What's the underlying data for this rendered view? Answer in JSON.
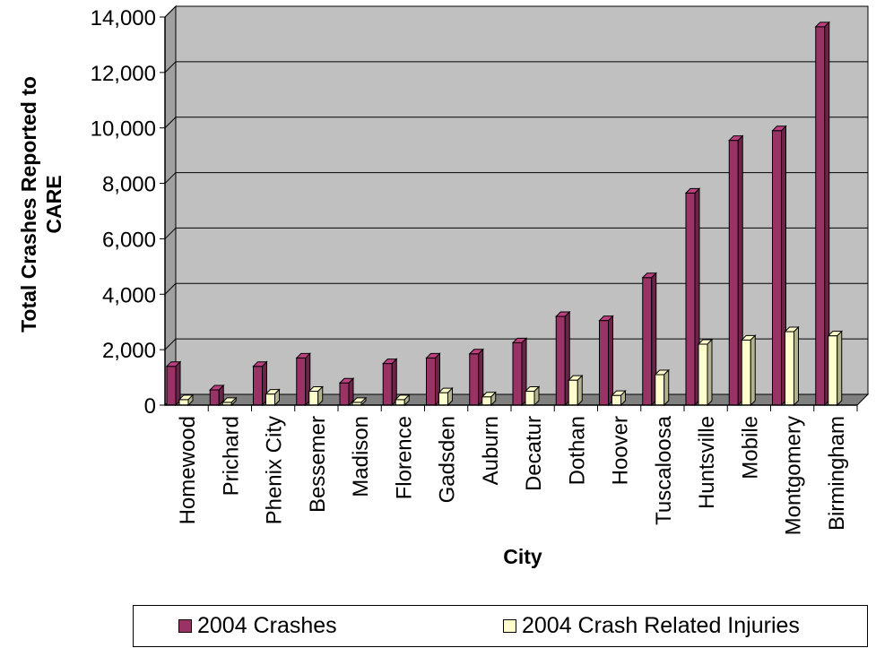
{
  "chart_data": {
    "type": "bar",
    "title": "",
    "xlabel": "City",
    "ylabel_lines": [
      "Total Crashes Reported to",
      "CARE"
    ],
    "ylim": [
      0,
      14000
    ],
    "yticks": [
      0,
      2000,
      4000,
      6000,
      8000,
      10000,
      12000,
      14000
    ],
    "ytick_labels": [
      "0",
      "2,000",
      "4,000",
      "6,000",
      "8,000",
      "10,000",
      "12,000",
      "14,000"
    ],
    "grid": true,
    "legend_position": "bottom",
    "categories": [
      "Homewood",
      "Prichard",
      "Phenix City",
      "Bessemer",
      "Madison",
      "Florence",
      "Gadsden",
      "Auburn",
      "Decatur",
      "Dothan",
      "Hoover",
      "Tuscaloosa",
      "Huntsville",
      "Mobile",
      "Montgomery",
      "Birmingham"
    ],
    "series": [
      {
        "name": "2004 Crashes",
        "color": "#993366",
        "values": [
          1400,
          550,
          1400,
          1700,
          800,
          1500,
          1700,
          1850,
          2250,
          3200,
          3050,
          4600,
          7650,
          9550,
          9900,
          13650
        ]
      },
      {
        "name": "2004 Crash Related Injuries",
        "color": "#ffffcc",
        "values": [
          200,
          100,
          400,
          500,
          100,
          200,
          450,
          300,
          500,
          900,
          350,
          1100,
          2200,
          2350,
          2650,
          2500
        ]
      }
    ]
  },
  "legend": {
    "items": [
      "2004 Crashes",
      "2004 Crash Related Injuries"
    ]
  }
}
